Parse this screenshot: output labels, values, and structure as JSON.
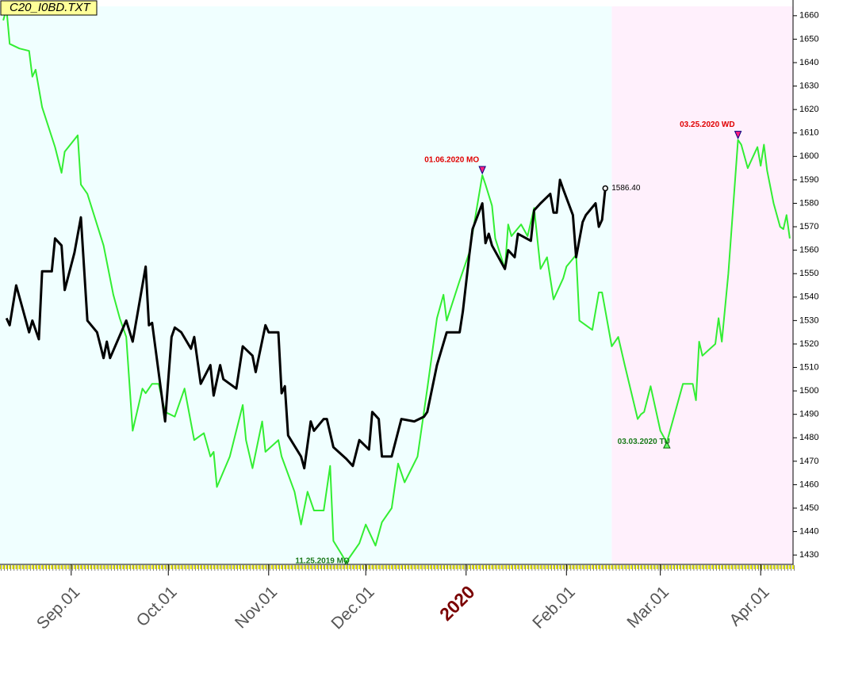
{
  "chart_data": {
    "type": "line",
    "title": "C20_I0BD.TXT",
    "xlim": [
      "2019-08-10",
      "2020-04-11"
    ],
    "ylim": [
      1426,
      1664
    ],
    "yticks": [
      1430,
      1440,
      1450,
      1460,
      1470,
      1480,
      1490,
      1500,
      1510,
      1520,
      1530,
      1540,
      1550,
      1560,
      1570,
      1580,
      1590,
      1600,
      1610,
      1620,
      1630,
      1640,
      1650,
      1660
    ],
    "xticks": [
      {
        "value": "2019-09-01",
        "label": "Sep.01"
      },
      {
        "value": "2019-10-01",
        "label": "Oct.01"
      },
      {
        "value": "2019-11-01",
        "label": "Nov.01"
      },
      {
        "value": "2019-12-01",
        "label": "Dec.01"
      },
      {
        "value": "2020-01-01",
        "label": "2020"
      },
      {
        "value": "2020-02-01",
        "label": "Feb.01"
      },
      {
        "value": "2020-03-01",
        "label": "Mar.01"
      },
      {
        "value": "2020-04-01",
        "label": "Apr.01"
      }
    ],
    "regions": [
      {
        "from": "2019-08-10",
        "to": "2020-02-15",
        "color": "#f0ffff"
      },
      {
        "from": "2020-02-15",
        "to": "2020-04-11",
        "color": "#fff0fc"
      }
    ],
    "series": [
      {
        "color": "#33ee33",
        "x": [
          "2019-08-11",
          "2019-08-12",
          "2019-08-13",
          "2019-08-16",
          "2019-08-19",
          "2019-08-20",
          "2019-08-21",
          "2019-08-23",
          "2019-08-27",
          "2019-08-29",
          "2019-08-30",
          "2019-09-03",
          "2019-09-04",
          "2019-09-06",
          "2019-09-11",
          "2019-09-14",
          "2019-09-16",
          "2019-09-18",
          "2019-09-20",
          "2019-09-23",
          "2019-09-24",
          "2019-09-26",
          "2019-09-28",
          "2019-09-30",
          "2019-10-03",
          "2019-10-06",
          "2019-10-09",
          "2019-10-12",
          "2019-10-14",
          "2019-10-15",
          "2019-10-16",
          "2019-10-20",
          "2019-10-24",
          "2019-10-25",
          "2019-10-27",
          "2019-10-30",
          "2019-10-31",
          "2019-11-04",
          "2019-11-05",
          "2019-11-09",
          "2019-11-11",
          "2019-11-13",
          "2019-11-15",
          "2019-11-18",
          "2019-11-20",
          "2019-11-21",
          "2019-11-25",
          "2019-11-29",
          "2019-12-01",
          "2019-12-04",
          "2019-12-06",
          "2019-12-09",
          "2019-12-11",
          "2019-12-13",
          "2019-12-17",
          "2019-12-20",
          "2019-12-23",
          "2019-12-25",
          "2019-12-26",
          "2019-12-30",
          "2020-01-02",
          "2020-01-06",
          "2020-01-07",
          "2020-01-09",
          "2020-01-10",
          "2020-01-13",
          "2020-01-14",
          "2020-01-15",
          "2020-01-18",
          "2020-01-20",
          "2020-01-22",
          "2020-01-24",
          "2020-01-26",
          "2020-01-28",
          "2020-01-31",
          "2020-02-01",
          "2020-02-04",
          "2020-02-05",
          "2020-02-09",
          "2020-02-11",
          "2020-02-12",
          "2020-02-15",
          "2020-02-17",
          "2020-02-19",
          "2020-02-23",
          "2020-02-24",
          "2020-02-25",
          "2020-02-27",
          "2020-03-01",
          "2020-03-03",
          "2020-03-08",
          "2020-03-11",
          "2020-03-12",
          "2020-03-13",
          "2020-03-14",
          "2020-03-18",
          "2020-03-19",
          "2020-03-20",
          "2020-03-22",
          "2020-03-25",
          "2020-03-26",
          "2020-03-28",
          "2020-03-31",
          "2020-04-01",
          "2020-04-02",
          "2020-04-03",
          "2020-04-05",
          "2020-04-07",
          "2020-04-08",
          "2020-04-09",
          "2020-04-10"
        ],
        "values": [
          1658,
          1663,
          1648,
          1646,
          1645,
          1634,
          1637,
          1621,
          1604,
          1593,
          1602,
          1609,
          1588,
          1584,
          1562,
          1541,
          1531,
          1523,
          1483,
          1501,
          1499,
          1503,
          1503,
          1491,
          1489,
          1501,
          1479,
          1482,
          1472,
          1474,
          1459,
          1472,
          1494,
          1479,
          1467,
          1487,
          1474,
          1479,
          1472,
          1457,
          1443,
          1457,
          1449,
          1449,
          1468,
          1436,
          1427,
          1435,
          1443,
          1434,
          1444,
          1450,
          1469,
          1461,
          1472,
          1501,
          1531,
          1541,
          1530,
          1547,
          1559,
          1592,
          1588,
          1579,
          1565,
          1552,
          1571,
          1566,
          1571,
          1566,
          1578,
          1552,
          1557,
          1539,
          1548,
          1553,
          1558,
          1530,
          1526,
          1542,
          1542,
          1519,
          1523,
          1511,
          1488,
          1490,
          1491,
          1502,
          1483,
          1478,
          1503,
          1503,
          1496,
          1521,
          1515,
          1520,
          1531,
          1521,
          1550,
          1607,
          1605,
          1595,
          1604,
          1596,
          1605,
          1594,
          1580,
          1570,
          1569,
          1575,
          1565
        ]
      },
      {
        "color": "#000000",
        "x": [
          "2019-08-12",
          "2019-08-13",
          "2019-08-15",
          "2019-08-17",
          "2019-08-19",
          "2019-08-20",
          "2019-08-22",
          "2019-08-23",
          "2019-08-26",
          "2019-08-27",
          "2019-08-29",
          "2019-08-30",
          "2019-09-02",
          "2019-09-04",
          "2019-09-06",
          "2019-09-09",
          "2019-09-11",
          "2019-09-12",
          "2019-09-13",
          "2019-09-18",
          "2019-09-20",
          "2019-09-24",
          "2019-09-25",
          "2019-09-26",
          "2019-09-30",
          "2019-10-02",
          "2019-10-03",
          "2019-10-05",
          "2019-10-08",
          "2019-10-09",
          "2019-10-11",
          "2019-10-14",
          "2019-10-15",
          "2019-10-17",
          "2019-10-18",
          "2019-10-22",
          "2019-10-24",
          "2019-10-27",
          "2019-10-28",
          "2019-10-31",
          "2019-11-01",
          "2019-11-04",
          "2019-11-05",
          "2019-11-06",
          "2019-11-07",
          "2019-11-11",
          "2019-11-12",
          "2019-11-14",
          "2019-11-15",
          "2019-11-18",
          "2019-11-19",
          "2019-11-21",
          "2019-11-25",
          "2019-11-27",
          "2019-11-29",
          "2019-12-02",
          "2019-12-03",
          "2019-12-05",
          "2019-12-06",
          "2019-12-09",
          "2019-12-12",
          "2019-12-16",
          "2019-12-19",
          "2019-12-20",
          "2019-12-23",
          "2019-12-26",
          "2019-12-30",
          "2019-12-31",
          "2020-01-02",
          "2020-01-03",
          "2020-01-06",
          "2020-01-07",
          "2020-01-08",
          "2020-01-09",
          "2020-01-13",
          "2020-01-14",
          "2020-01-16",
          "2020-01-17",
          "2020-01-21",
          "2020-01-22",
          "2020-01-24",
          "2020-01-27",
          "2020-01-28",
          "2020-01-29",
          "2020-01-30",
          "2020-01-31",
          "2020-02-03",
          "2020-02-04",
          "2020-02-06",
          "2020-02-07",
          "2020-02-10",
          "2020-02-11",
          "2020-02-12",
          "2020-02-13"
        ],
        "values": [
          1531,
          1528,
          1545,
          1535,
          1525,
          1530,
          1522,
          1551,
          1551,
          1565,
          1562,
          1543,
          1559,
          1574,
          1530,
          1525,
          1514,
          1521,
          1514,
          1530,
          1521,
          1553,
          1528,
          1529,
          1487,
          1523,
          1527,
          1525,
          1518,
          1523,
          1503,
          1511,
          1498,
          1511,
          1505,
          1501,
          1519,
          1515,
          1508,
          1528,
          1525,
          1525,
          1499,
          1502,
          1481,
          1472,
          1467,
          1487,
          1483,
          1488,
          1488,
          1476,
          1471,
          1468,
          1479,
          1475,
          1491,
          1488,
          1472,
          1472,
          1488,
          1487,
          1489,
          1491,
          1511,
          1525,
          1525,
          1534,
          1558,
          1569,
          1580,
          1563,
          1567,
          1562,
          1552,
          1560,
          1557,
          1567,
          1564,
          1577,
          1580,
          1584,
          1576,
          1576,
          1590,
          1586,
          1575,
          1557,
          1572,
          1575,
          1580,
          1570,
          1573,
          1586.4
        ]
      }
    ],
    "annotations": [
      {
        "text": "01.06.2020 MO",
        "x": "2020-01-06",
        "y": 1592,
        "color": "#e00000",
        "marker": "down"
      },
      {
        "text": "03.25.2020 WD",
        "x": "2020-03-25",
        "y": 1607,
        "color": "#e00000",
        "marker": "down"
      },
      {
        "text": "11.25.2019 MO",
        "x": "2019-11-25",
        "y": 1427,
        "color": "#1a7a1a",
        "marker": "up"
      },
      {
        "text": "03.03.2020 TU",
        "x": "2020-03-03",
        "y": 1478,
        "color": "#1a7a1a",
        "marker": "up"
      },
      {
        "text": "1586.40",
        "x": "2020-02-13",
        "y": 1586.4,
        "color": "#000000",
        "marker": "circle"
      }
    ]
  }
}
